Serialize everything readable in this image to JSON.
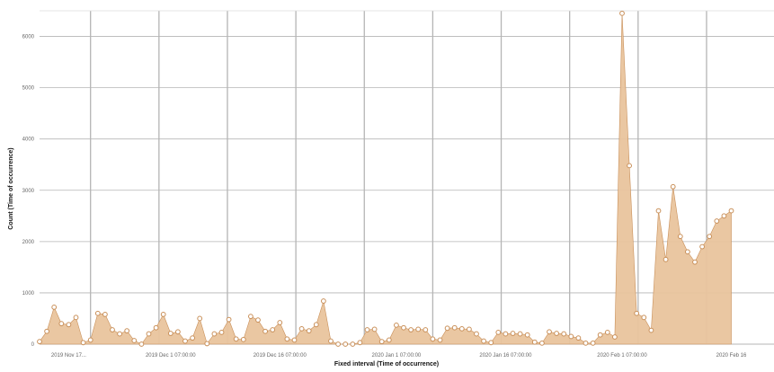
{
  "chart_data": {
    "type": "area",
    "title": "",
    "xlabel": "Fixed interval (Time of occurrence)",
    "ylabel": "Count (Time of occurrence)",
    "ylim": [
      0,
      6500
    ],
    "yticks": [
      0,
      1000,
      2000,
      3000,
      4000,
      5000,
      6000
    ],
    "x_unit": "days",
    "x_range": [
      "2019-11-13",
      "2020-02-16"
    ],
    "xticks": [
      {
        "date": "2019-11-17",
        "label": "2019 Nov 17..."
      },
      {
        "date": "2019-12-01",
        "label": "2019 Dec 1 07:00:00"
      },
      {
        "date": "2019-12-16",
        "label": "2019 Dec 16 07:00:00"
      },
      {
        "date": "2020-01-01",
        "label": "2020 Jan 1 07:00:00"
      },
      {
        "date": "2020-01-16",
        "label": "2020 Jan 16 07:00:00"
      },
      {
        "date": "2020-02-01",
        "label": "2020 Feb 1 07:00:00"
      },
      {
        "date": "2020-02-16",
        "label": "2020 Feb 16"
      }
    ],
    "gridlines": true,
    "fill_color": "#e9c49d",
    "point_stroke": "#c9905a",
    "point_fill": "#ffffff",
    "grid_color": "#b5b5b5",
    "x": [
      "2019-11-13",
      "2019-11-14",
      "2019-11-15",
      "2019-11-16",
      "2019-11-17",
      "2019-11-18",
      "2019-11-19",
      "2019-11-20",
      "2019-11-21",
      "2019-11-22",
      "2019-11-23",
      "2019-11-24",
      "2019-11-25",
      "2019-11-26",
      "2019-11-27",
      "2019-11-28",
      "2019-11-29",
      "2019-11-30",
      "2019-12-01",
      "2019-12-02",
      "2019-12-03",
      "2019-12-04",
      "2019-12-05",
      "2019-12-06",
      "2019-12-07",
      "2019-12-08",
      "2019-12-09",
      "2019-12-10",
      "2019-12-11",
      "2019-12-12",
      "2019-12-13",
      "2019-12-14",
      "2019-12-15",
      "2019-12-16",
      "2019-12-17",
      "2019-12-18",
      "2019-12-19",
      "2019-12-20",
      "2019-12-21",
      "2019-12-22",
      "2019-12-23",
      "2019-12-24",
      "2019-12-25",
      "2019-12-26",
      "2019-12-27",
      "2019-12-28",
      "2019-12-29",
      "2019-12-30",
      "2019-12-31",
      "2020-01-01",
      "2020-01-02",
      "2020-01-03",
      "2020-01-04",
      "2020-01-05",
      "2020-01-06",
      "2020-01-07",
      "2020-01-08",
      "2020-01-09",
      "2020-01-10",
      "2020-01-11",
      "2020-01-12",
      "2020-01-13",
      "2020-01-14",
      "2020-01-15",
      "2020-01-16",
      "2020-01-17",
      "2020-01-18",
      "2020-01-19",
      "2020-01-20",
      "2020-01-21",
      "2020-01-22",
      "2020-01-23",
      "2020-01-24",
      "2020-01-25",
      "2020-01-26",
      "2020-01-27",
      "2020-01-28",
      "2020-01-29",
      "2020-01-30",
      "2020-01-31",
      "2020-02-01",
      "2020-02-02",
      "2020-02-03",
      "2020-02-04",
      "2020-02-05",
      "2020-02-06",
      "2020-02-07",
      "2020-02-08",
      "2020-02-09",
      "2020-02-10",
      "2020-02-11",
      "2020-02-12",
      "2020-02-13",
      "2020-02-14",
      "2020-02-15",
      "2020-02-16"
    ],
    "values": [
      50,
      250,
      720,
      400,
      380,
      520,
      30,
      80,
      600,
      580,
      280,
      200,
      260,
      70,
      0,
      200,
      320,
      580,
      210,
      240,
      60,
      120,
      500,
      10,
      200,
      230,
      480,
      100,
      90,
      540,
      470,
      250,
      280,
      420,
      100,
      80,
      300,
      260,
      380,
      840,
      60,
      0,
      0,
      0,
      30,
      280,
      290,
      50,
      80,
      370,
      320,
      280,
      290,
      280,
      100,
      80,
      310,
      320,
      300,
      290,
      200,
      60,
      30,
      230,
      200,
      210,
      200,
      180,
      40,
      20,
      240,
      210,
      200,
      150,
      120,
      20,
      20,
      180,
      230,
      140,
      6450,
      3480,
      600,
      520,
      270,
      2600,
      1650,
      3070,
      2100,
      1800,
      1600,
      1900,
      2100,
      2400,
      2500,
      2600
    ]
  }
}
